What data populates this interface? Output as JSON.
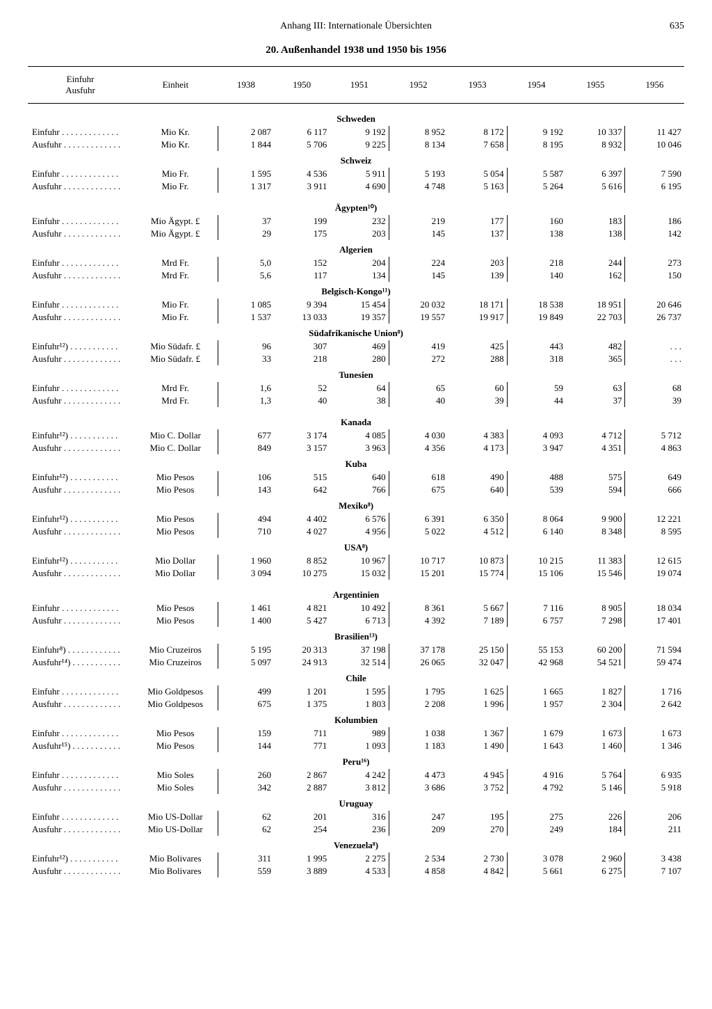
{
  "header": {
    "title": "Anhang III: Internationale Übersichten",
    "page": "635"
  },
  "section_title": "20. Außenhandel 1938 und 1950 bis 1956",
  "columns": {
    "c0": "Einfuhr\nAusfuhr",
    "c1": "Einheit",
    "c2": "1938",
    "c3": "1950",
    "c4": "1951",
    "c5": "1952",
    "c6": "1953",
    "c7": "1954",
    "c8": "1955",
    "c9": "1956"
  },
  "labels": {
    "einfuhr": "Einfuhr  . . . . . . . . . . . . .",
    "ausfuhr": "Ausfuhr  . . . . . . . . . . . . .",
    "einfuhr12": "Einfuhr¹²)  . . . . . . . . . . .",
    "einfuhr8": "Einfuhr⁸)  . . . . . . . . . . . .",
    "ausfuhr14": "Ausfuhr¹⁴)  . . . . . . . . . . .",
    "ausfuhr15": "Ausfuhr¹⁵)  . . . . . . . . . . ."
  },
  "countries": [
    {
      "name": "Schweden",
      "tight": false,
      "rows": [
        {
          "l": "einfuhr",
          "u": "Mio Kr.",
          "v": [
            "2 087",
            "6 117",
            "9 192",
            "8 952",
            "8 172",
            "9 192",
            "10 337",
            "11 427"
          ]
        },
        {
          "l": "ausfuhr",
          "u": "Mio Kr.",
          "v": [
            "1 844",
            "5 706",
            "9 225",
            "8 134",
            "7 658",
            "8 195",
            "8 932",
            "10 046"
          ]
        }
      ]
    },
    {
      "name": "Schweiz",
      "tight": true,
      "rows": [
        {
          "l": "einfuhr",
          "u": "Mio Fr.",
          "v": [
            "1 595",
            "4 536",
            "5 911",
            "5 193",
            "5 054",
            "5 587",
            "6 397",
            "7 590"
          ]
        },
        {
          "l": "ausfuhr",
          "u": "Mio Fr.",
          "v": [
            "1 317",
            "3 911",
            "4 690",
            "4 748",
            "5 163",
            "5 264",
            "5 616",
            "6 195"
          ]
        }
      ]
    },
    {
      "name": "Ägypten¹⁰)",
      "tight": false,
      "rows": [
        {
          "l": "einfuhr",
          "u": "Mio Ägypt. £",
          "v": [
            "37",
            "199",
            "232",
            "219",
            "177",
            "160",
            "183",
            "186"
          ]
        },
        {
          "l": "ausfuhr",
          "u": "Mio Ägypt. £",
          "v": [
            "29",
            "175",
            "203",
            "145",
            "137",
            "138",
            "138",
            "142"
          ]
        }
      ]
    },
    {
      "name": "Algerien",
      "tight": true,
      "rows": [
        {
          "l": "einfuhr",
          "u": "Mrd Fr.",
          "v": [
            "5,0",
            "152",
            "204",
            "224",
            "203",
            "218",
            "244",
            "273"
          ]
        },
        {
          "l": "ausfuhr",
          "u": "Mrd Fr.",
          "v": [
            "5,6",
            "117",
            "134",
            "145",
            "139",
            "140",
            "162",
            "150"
          ]
        }
      ]
    },
    {
      "name": "Belgisch-Kongo¹¹)",
      "tight": true,
      "rows": [
        {
          "l": "einfuhr",
          "u": "Mio Fr.",
          "v": [
            "1 085",
            "9 394",
            "15 454",
            "20 032",
            "18 171",
            "18 538",
            "18 951",
            "20 646"
          ]
        },
        {
          "l": "ausfuhr",
          "u": "Mio Fr.",
          "v": [
            "1 537",
            "13 033",
            "19 357",
            "19 557",
            "19 917",
            "19 849",
            "22 703",
            "26 737"
          ]
        }
      ]
    },
    {
      "name": "Südafrikanische Union⁸)",
      "tight": true,
      "rows": [
        {
          "l": "einfuhr12",
          "u": "Mio Südafr. £",
          "v": [
            "96",
            "307",
            "469",
            "419",
            "425",
            "443",
            "482",
            ". . ."
          ]
        },
        {
          "l": "ausfuhr",
          "u": "Mio Südafr. £",
          "v": [
            "33",
            "218",
            "280",
            "272",
            "288",
            "318",
            "365",
            ". . ."
          ]
        }
      ]
    },
    {
      "name": "Tunesien",
      "tight": true,
      "rows": [
        {
          "l": "einfuhr",
          "u": "Mrd Fr.",
          "v": [
            "1,6",
            "52",
            "64",
            "65",
            "60",
            "59",
            "63",
            "68"
          ]
        },
        {
          "l": "ausfuhr",
          "u": "Mrd Fr.",
          "v": [
            "1,3",
            "40",
            "38",
            "40",
            "39",
            "44",
            "37",
            "39"
          ]
        }
      ]
    },
    {
      "name": "Kanada",
      "tight": false,
      "rows": [
        {
          "l": "einfuhr12",
          "u": "Mio C. Dollar",
          "v": [
            "677",
            "3 174",
            "4 085",
            "4 030",
            "4 383",
            "4 093",
            "4 712",
            "5 712"
          ]
        },
        {
          "l": "ausfuhr",
          "u": "Mio C. Dollar",
          "v": [
            "849",
            "3 157",
            "3 963",
            "4 356",
            "4 173",
            "3 947",
            "4 351",
            "4 863"
          ]
        }
      ]
    },
    {
      "name": "Kuba",
      "tight": true,
      "rows": [
        {
          "l": "einfuhr12",
          "u": "Mio Pesos",
          "v": [
            "106",
            "515",
            "640",
            "618",
            "490",
            "488",
            "575",
            "649"
          ]
        },
        {
          "l": "ausfuhr",
          "u": "Mio Pesos",
          "v": [
            "143",
            "642",
            "766",
            "675",
            "640",
            "539",
            "594",
            "666"
          ]
        }
      ]
    },
    {
      "name": "Mexiko⁸)",
      "tight": true,
      "rows": [
        {
          "l": "einfuhr12",
          "u": "Mio Pesos",
          "v": [
            "494",
            "4 402",
            "6 576",
            "6 391",
            "6 350",
            "8 064",
            "9 900",
            "12 221"
          ]
        },
        {
          "l": "ausfuhr",
          "u": "Mio Pesos",
          "v": [
            "710",
            "4 027",
            "4 956",
            "5 022",
            "4 512",
            "6 140",
            "8 348",
            "8 595"
          ]
        }
      ]
    },
    {
      "name": "USA⁸)",
      "tight": true,
      "rows": [
        {
          "l": "einfuhr12",
          "u": "Mio Dollar",
          "v": [
            "1 960",
            "8 852",
            "10 967",
            "10 717",
            "10 873",
            "10 215",
            "11 383",
            "12 615"
          ]
        },
        {
          "l": "ausfuhr",
          "u": "Mio Dollar",
          "v": [
            "3 094",
            "10 275",
            "15 032",
            "15 201",
            "15 774",
            "15 106",
            "15 546",
            "19 074"
          ]
        }
      ]
    },
    {
      "name": "Argentinien",
      "tight": false,
      "rows": [
        {
          "l": "einfuhr",
          "u": "Mio Pesos",
          "v": [
            "1 461",
            "4 821",
            "10 492",
            "8 361",
            "5 667",
            "7 116",
            "8 905",
            "18 034"
          ]
        },
        {
          "l": "ausfuhr",
          "u": "Mio Pesos",
          "v": [
            "1 400",
            "5 427",
            "6 713",
            "4 392",
            "7 189",
            "6 757",
            "7 298",
            "17 401"
          ]
        }
      ]
    },
    {
      "name": "Brasilien¹³)",
      "tight": true,
      "rows": [
        {
          "l": "einfuhr8",
          "u": "Mio Cruzeiros",
          "v": [
            "5 195",
            "20 313",
            "37 198",
            "37 178",
            "25 150",
            "55 153",
            "60 200",
            "71 594"
          ]
        },
        {
          "l": "ausfuhr14",
          "u": "Mio Cruzeiros",
          "v": [
            "5 097",
            "24 913",
            "32 514",
            "26 065",
            "32 047",
            "42 968",
            "54 521",
            "59 474"
          ]
        }
      ]
    },
    {
      "name": "Chile",
      "tight": true,
      "rows": [
        {
          "l": "einfuhr",
          "u": "Mio Goldpesos",
          "v": [
            "499",
            "1 201",
            "1 595",
            "1 795",
            "1 625",
            "1 665",
            "1 827",
            "1 716"
          ]
        },
        {
          "l": "ausfuhr",
          "u": "Mio Goldpesos",
          "v": [
            "675",
            "1 375",
            "1 803",
            "2 208",
            "1 996",
            "1 957",
            "2 304",
            "2 642"
          ]
        }
      ]
    },
    {
      "name": "Kolumbien",
      "tight": true,
      "rows": [
        {
          "l": "einfuhr",
          "u": "Mio Pesos",
          "v": [
            "159",
            "711",
            "989",
            "1 038",
            "1 367",
            "1 679",
            "1 673",
            "1 673"
          ]
        },
        {
          "l": "ausfuhr15",
          "u": "Mio Pesos",
          "v": [
            "144",
            "771",
            "1 093",
            "1 183",
            "1 490",
            "1 643",
            "1 460",
            "1 346"
          ]
        }
      ]
    },
    {
      "name": "Peru¹⁶)",
      "tight": true,
      "rows": [
        {
          "l": "einfuhr",
          "u": "Mio Soles",
          "v": [
            "260",
            "2 867",
            "4 242",
            "4 473",
            "4 945",
            "4 916",
            "5 764",
            "6 935"
          ]
        },
        {
          "l": "ausfuhr",
          "u": "Mio Soles",
          "v": [
            "342",
            "2 887",
            "3 812",
            "3 686",
            "3 752",
            "4 792",
            "5 146",
            "5 918"
          ]
        }
      ]
    },
    {
      "name": "Uruguay",
      "tight": true,
      "rows": [
        {
          "l": "einfuhr",
          "u": "Mio US-Dollar",
          "v": [
            "62",
            "201",
            "316",
            "247",
            "195",
            "275",
            "226",
            "206"
          ]
        },
        {
          "l": "ausfuhr",
          "u": "Mio US-Dollar",
          "v": [
            "62",
            "254",
            "236",
            "209",
            "270",
            "249",
            "184",
            "211"
          ]
        }
      ]
    },
    {
      "name": "Venezuela⁸)",
      "tight": true,
      "rows": [
        {
          "l": "einfuhr12",
          "u": "Mio Bolivares",
          "v": [
            "311",
            "1 995",
            "2 275",
            "2 534",
            "2 730",
            "3 078",
            "2 960",
            "3 438"
          ]
        },
        {
          "l": "ausfuhr",
          "u": "Mio Bolivares",
          "v": [
            "559",
            "3 889",
            "4 533",
            "4 858",
            "4 842",
            "5 661",
            "6 275",
            "7 107"
          ]
        }
      ]
    }
  ],
  "layout": {
    "col_widths": [
      "16%",
      "13%",
      "8.5%",
      "8.5%",
      "9%",
      "9%",
      "9%",
      "9%",
      "9%",
      "9%"
    ]
  }
}
